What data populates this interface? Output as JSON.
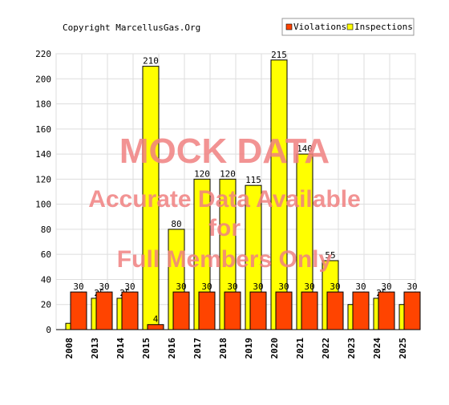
{
  "copyright": "Copyright MarcellusGas.Org",
  "watermark": {
    "line1": "MOCK DATA",
    "line2": "Accurate Data Available",
    "line3": "for",
    "line4": "Full Members Only",
    "color": "#f08080"
  },
  "chart_data": {
    "type": "bar",
    "categories": [
      "2008",
      "2013",
      "2014",
      "2015",
      "2016",
      "2017",
      "2018",
      "2019",
      "2020",
      "2021",
      "2022",
      "2023",
      "2024",
      "2025"
    ],
    "series": [
      {
        "name": "Violations",
        "color": "#ff4400",
        "values": [
          30,
          30,
          30,
          4,
          30,
          30,
          30,
          30,
          30,
          30,
          30,
          30,
          30,
          30
        ],
        "labels": [
          "30",
          "30",
          "30",
          "4",
          "30",
          "30",
          "30",
          "30",
          "30",
          "30",
          "30",
          "30",
          "30",
          "30"
        ]
      },
      {
        "name": "Inspections",
        "color": "#ffff00",
        "values": [
          5,
          25,
          25,
          210,
          80,
          120,
          120,
          115,
          215,
          140,
          55,
          20,
          25,
          20
        ],
        "labels": [
          "",
          "25",
          "25",
          "210",
          "80",
          "120",
          "120",
          "115",
          "215",
          "140",
          "55",
          "",
          "25",
          ""
        ]
      }
    ],
    "yticks": [
      0,
      20,
      40,
      60,
      80,
      100,
      120,
      140,
      160,
      180,
      200,
      220
    ],
    "ylim": [
      0,
      220
    ],
    "grid": true,
    "legend": "top-right"
  }
}
